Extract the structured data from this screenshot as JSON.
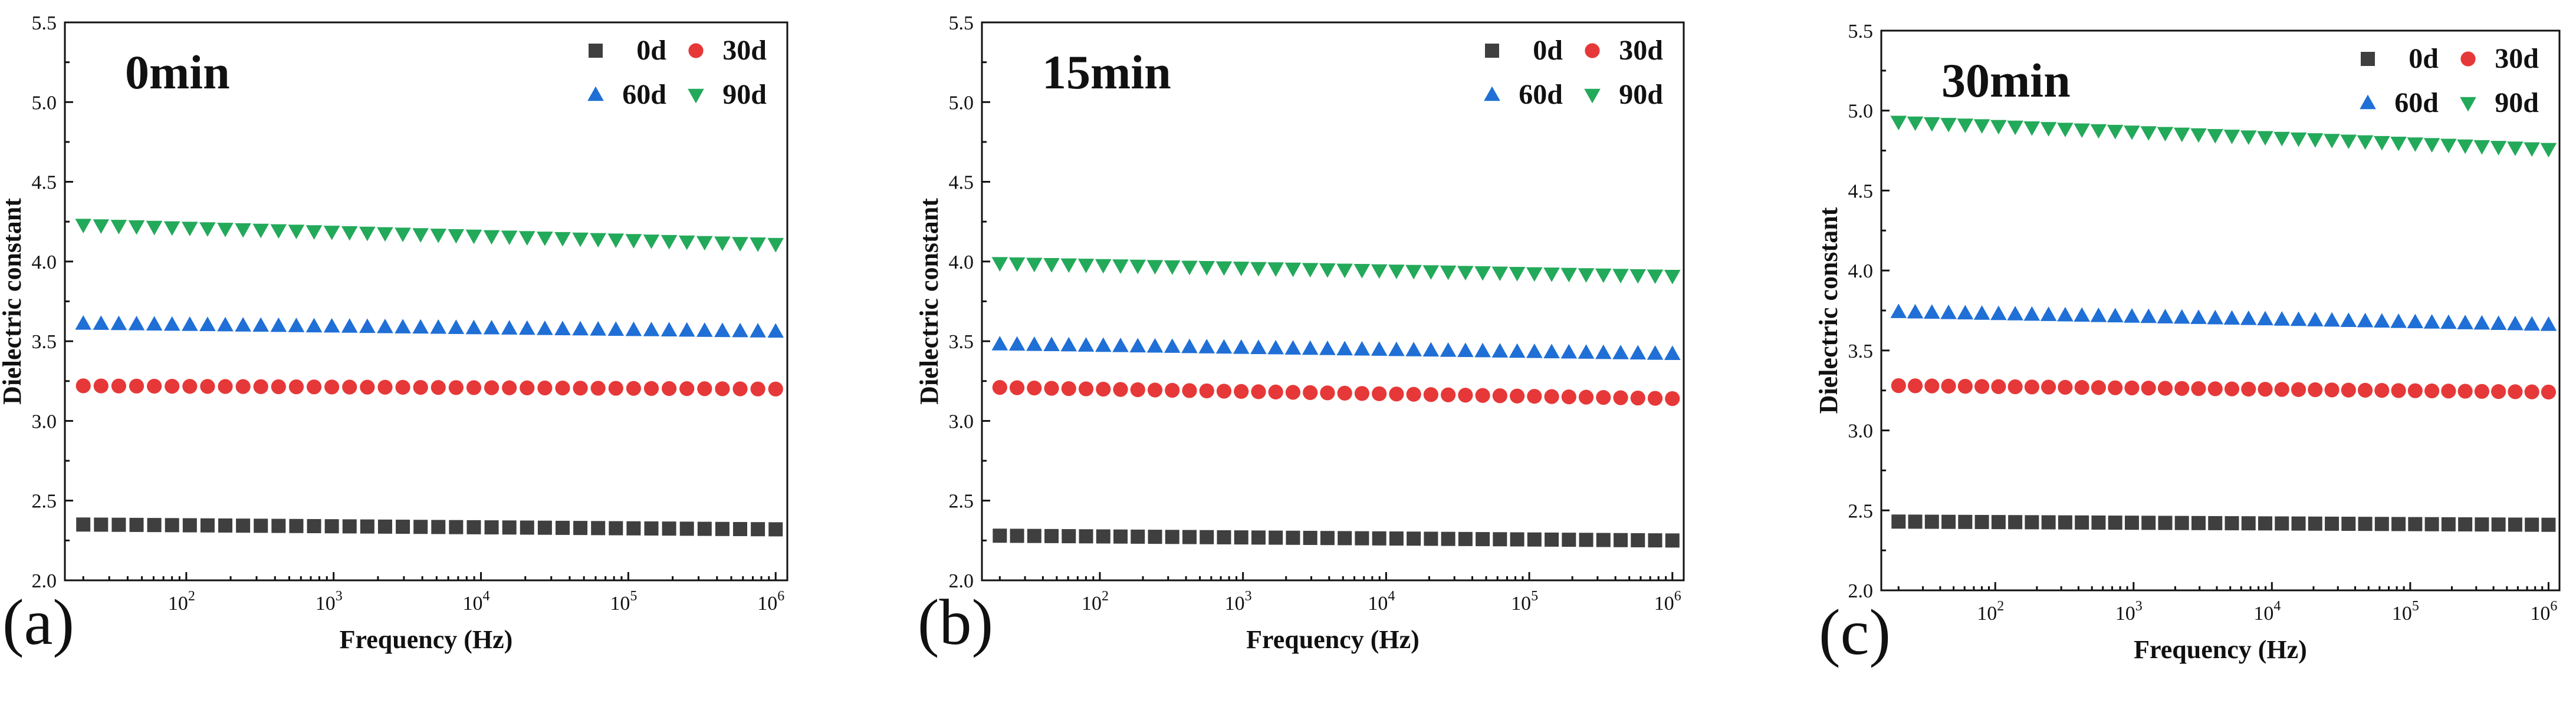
{
  "figure": {
    "ylabel": "Dielectric constant",
    "xlabel": "Frequency (Hz)",
    "legend": [
      {
        "label": "0d",
        "color": "#3f3f3f",
        "marker": "square"
      },
      {
        "label": "30d",
        "color": "#e63838",
        "marker": "circle"
      },
      {
        "label": "60d",
        "color": "#1f6fd6",
        "marker": "triangle-up"
      },
      {
        "label": "90d",
        "color": "#23a95a",
        "marker": "triangle-down"
      }
    ],
    "ytick_labels": [
      "2.0",
      "2.5",
      "3.0",
      "3.5",
      "4.0",
      "4.5",
      "5.0",
      "5.5"
    ],
    "xtick_labels": [
      {
        "base": "10",
        "exp": "2"
      },
      {
        "base": "10",
        "exp": "3"
      },
      {
        "base": "10",
        "exp": "4"
      },
      {
        "base": "10",
        "exp": "5"
      },
      {
        "base": "10",
        "exp": "6"
      }
    ]
  },
  "chart_data": [
    {
      "type": "scatter",
      "panel": "(a)",
      "title": "0min",
      "xlabel": "Frequency (Hz)",
      "ylabel": "Dielectric constant",
      "xscale": "log",
      "xlim": [
        15,
        1200000
      ],
      "ylim": [
        2.0,
        5.5
      ],
      "x_range": [
        20,
        1000000
      ],
      "points_per_series": 40,
      "legend_position": "top-right",
      "series": [
        {
          "name": "0d",
          "start": 2.35,
          "end": 2.32
        },
        {
          "name": "30d",
          "start": 3.22,
          "end": 3.2
        },
        {
          "name": "60d",
          "start": 3.61,
          "end": 3.56
        },
        {
          "name": "90d",
          "start": 4.23,
          "end": 4.11
        }
      ]
    },
    {
      "type": "scatter",
      "panel": "(b)",
      "title": "15min",
      "xlabel": "Frequency (Hz)",
      "ylabel": "Dielectric constant",
      "xscale": "log",
      "xlim": [
        15,
        1200000
      ],
      "ylim": [
        2.0,
        5.5
      ],
      "x_range": [
        20,
        1000000
      ],
      "points_per_series": 40,
      "legend_position": "top-right",
      "series": [
        {
          "name": "0d",
          "start": 2.28,
          "end": 2.25
        },
        {
          "name": "30d",
          "start": 3.21,
          "end": 3.14
        },
        {
          "name": "60d",
          "start": 3.48,
          "end": 3.42
        },
        {
          "name": "90d",
          "start": 3.99,
          "end": 3.91
        }
      ]
    },
    {
      "type": "scatter",
      "panel": "(c)",
      "title": "30min",
      "xlabel": "Frequency (Hz)",
      "ylabel": "Dielectric constant",
      "xscale": "log",
      "xlim": [
        15,
        1200000
      ],
      "ylim": [
        2.0,
        5.5
      ],
      "x_range": [
        20,
        1000000
      ],
      "points_per_series": 40,
      "legend_position": "top-right",
      "series": [
        {
          "name": "0d",
          "start": 2.43,
          "end": 2.41
        },
        {
          "name": "30d",
          "start": 3.28,
          "end": 3.24
        },
        {
          "name": "60d",
          "start": 3.74,
          "end": 3.66
        },
        {
          "name": "90d",
          "start": 4.93,
          "end": 4.76
        }
      ]
    }
  ]
}
